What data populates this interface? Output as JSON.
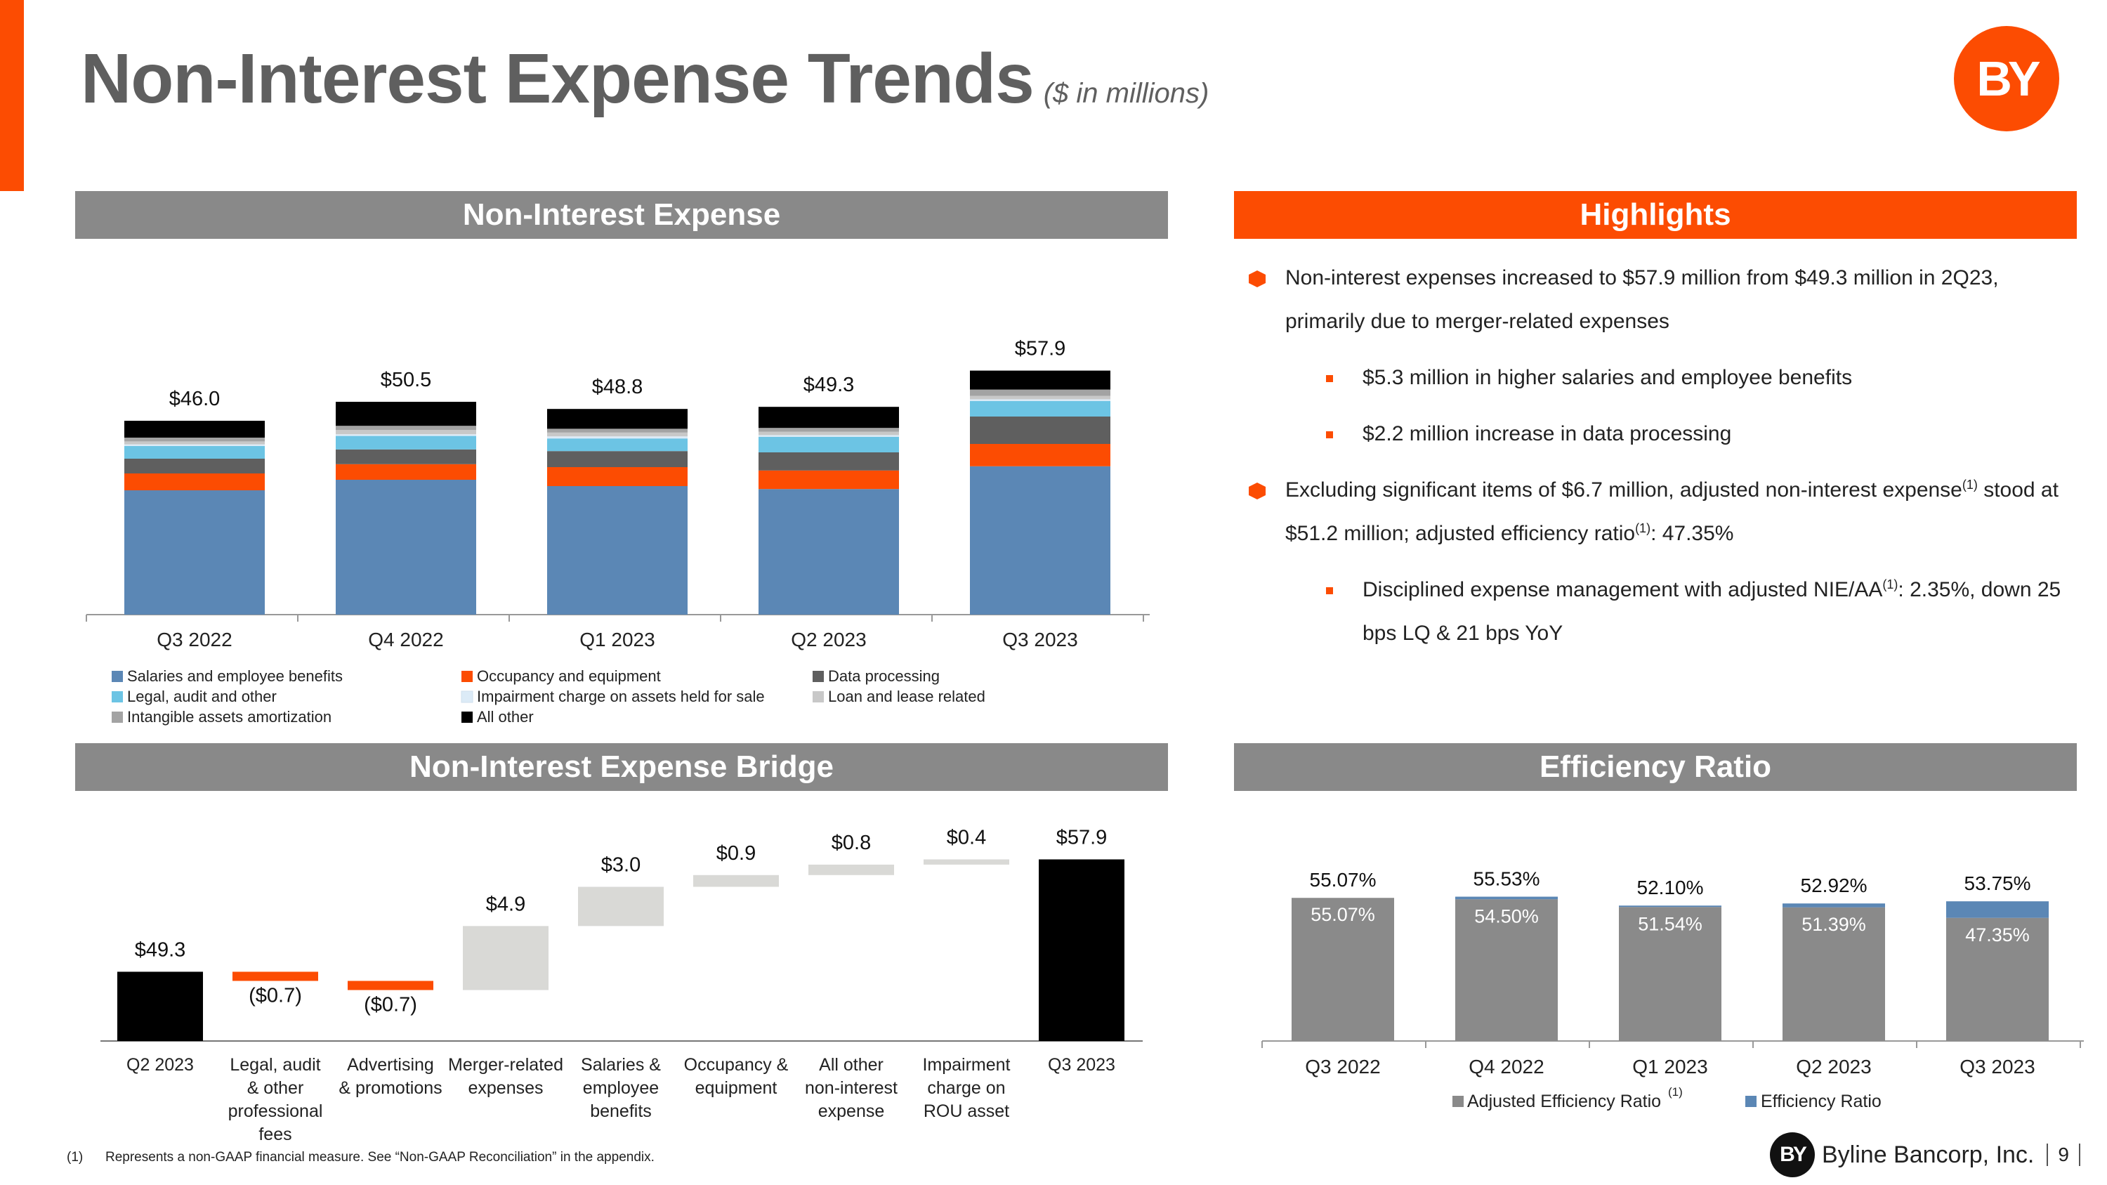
{
  "header": {
    "title": "Non-Interest Expense Trends",
    "subtitle": "($ in millions)",
    "logo_text": "BY"
  },
  "panels": {
    "nie": "Non-Interest Expense",
    "highlights": "Highlights",
    "bridge": "Non-Interest Expense Bridge",
    "efficiency": "Efficiency Ratio"
  },
  "highlights": {
    "b1": "Non-interest expenses increased to $57.9 million from $49.3 million in 2Q23, primarily due to merger-related expenses",
    "b1a": "$5.3 million in higher salaries and employee benefits",
    "b1b": "$2.2 million increase in data processing",
    "b2_pre": "Excluding significant items of $6.7 million, adjusted non-interest expense",
    "b2_sup1": "(1)",
    "b2_mid": " stood at $51.2 million; adjusted efficiency ratio",
    "b2_sup2": "(1)",
    "b2_post": ": 47.35%",
    "b2a_pre": "Disciplined expense management with adjusted NIE/AA",
    "b2a_sup": "(1)",
    "b2a_post": ": 2.35%, down 25 bps LQ & 21 bps YoY"
  },
  "chart_data": [
    {
      "type": "bar",
      "stacked": true,
      "categories": [
        "Q3 2022",
        "Q4 2022",
        "Q1 2023",
        "Q2 2023",
        "Q3 2023"
      ],
      "totals": [
        "$46.0",
        "$50.5",
        "$48.8",
        "$49.3",
        "$57.9"
      ],
      "series": [
        {
          "name": "Salaries and employee benefits",
          "color": "#5B87B5",
          "values": [
            29.5,
            32.0,
            30.5,
            29.8,
            35.2
          ]
        },
        {
          "name": "Occupancy and equipment",
          "color": "#FC4C02",
          "values": [
            4.0,
            3.7,
            4.5,
            4.4,
            5.3
          ]
        },
        {
          "name": "Data processing",
          "color": "#5f5f5f",
          "values": [
            3.5,
            3.5,
            3.8,
            4.3,
            6.5
          ]
        },
        {
          "name": "Legal, audit and other",
          "color": "#6CC4E4",
          "values": [
            3.0,
            3.2,
            3.0,
            3.7,
            3.7
          ]
        },
        {
          "name": "Impairment charge on assets held for sale",
          "color": "#DCEBF7",
          "values": [
            0.4,
            0.4,
            0.5,
            0.4,
            0.4
          ]
        },
        {
          "name": "Loan and lease related",
          "color": "#C8C8C8",
          "values": [
            0.7,
            1.0,
            0.9,
            0.8,
            0.8
          ]
        },
        {
          "name": "Intangible assets amortization",
          "color": "#A3A3A3",
          "values": [
            0.9,
            1.0,
            0.9,
            0.9,
            1.5
          ]
        },
        {
          "name": "All other",
          "color": "#000000",
          "values": [
            4.0,
            5.7,
            4.7,
            5.0,
            4.5
          ]
        }
      ]
    },
    {
      "type": "bar",
      "waterfall": true,
      "categories": [
        "Q2 2023",
        "Legal, audit & other professional fees",
        "Advertising & promotions",
        "Merger-related expenses",
        "Salaries & employee benefits",
        "Occupancy & equipment",
        "All other non-interest expense",
        "Impairment charge on ROU asset",
        "Q3 2023"
      ],
      "values": [
        49.3,
        -0.7,
        -0.7,
        4.9,
        3.0,
        0.9,
        0.8,
        0.4,
        57.9
      ],
      "labels": [
        "$49.3",
        "($0.7)",
        "($0.7)",
        "$4.9",
        "$3.0",
        "$0.9",
        "$0.8",
        "$0.4",
        "$57.9"
      ],
      "colors": {
        "total": "#000000",
        "decrease": "#FC4C02",
        "increase": "#D9D9D6"
      }
    },
    {
      "type": "bar",
      "stacked": true,
      "categories": [
        "Q3 2022",
        "Q4 2022",
        "Q1 2023",
        "Q2 2023",
        "Q3 2023"
      ],
      "series": [
        {
          "name": "Adjusted Efficiency Ratio",
          "name_sup": "(1)",
          "color": "#8A8A8A",
          "values": [
            55.07,
            54.5,
            51.54,
            51.39,
            47.35
          ],
          "labels": [
            "55.07%",
            "54.50%",
            "51.54%",
            "51.39%",
            "47.35%"
          ]
        },
        {
          "name": "Efficiency Ratio",
          "color": "#5B87B5",
          "values": [
            55.07,
            55.53,
            52.1,
            52.92,
            53.75
          ],
          "labels": [
            "55.07%",
            "55.53%",
            "52.10%",
            "52.92%",
            "53.75%"
          ]
        }
      ]
    }
  ],
  "footnote": {
    "num": "(1)",
    "text": "Represents a non-GAAP financial measure.  See “Non-GAAP Reconciliation” in the appendix."
  },
  "brand": {
    "mark": "BY",
    "name": "Byline Bancorp, Inc.",
    "page": "9"
  }
}
